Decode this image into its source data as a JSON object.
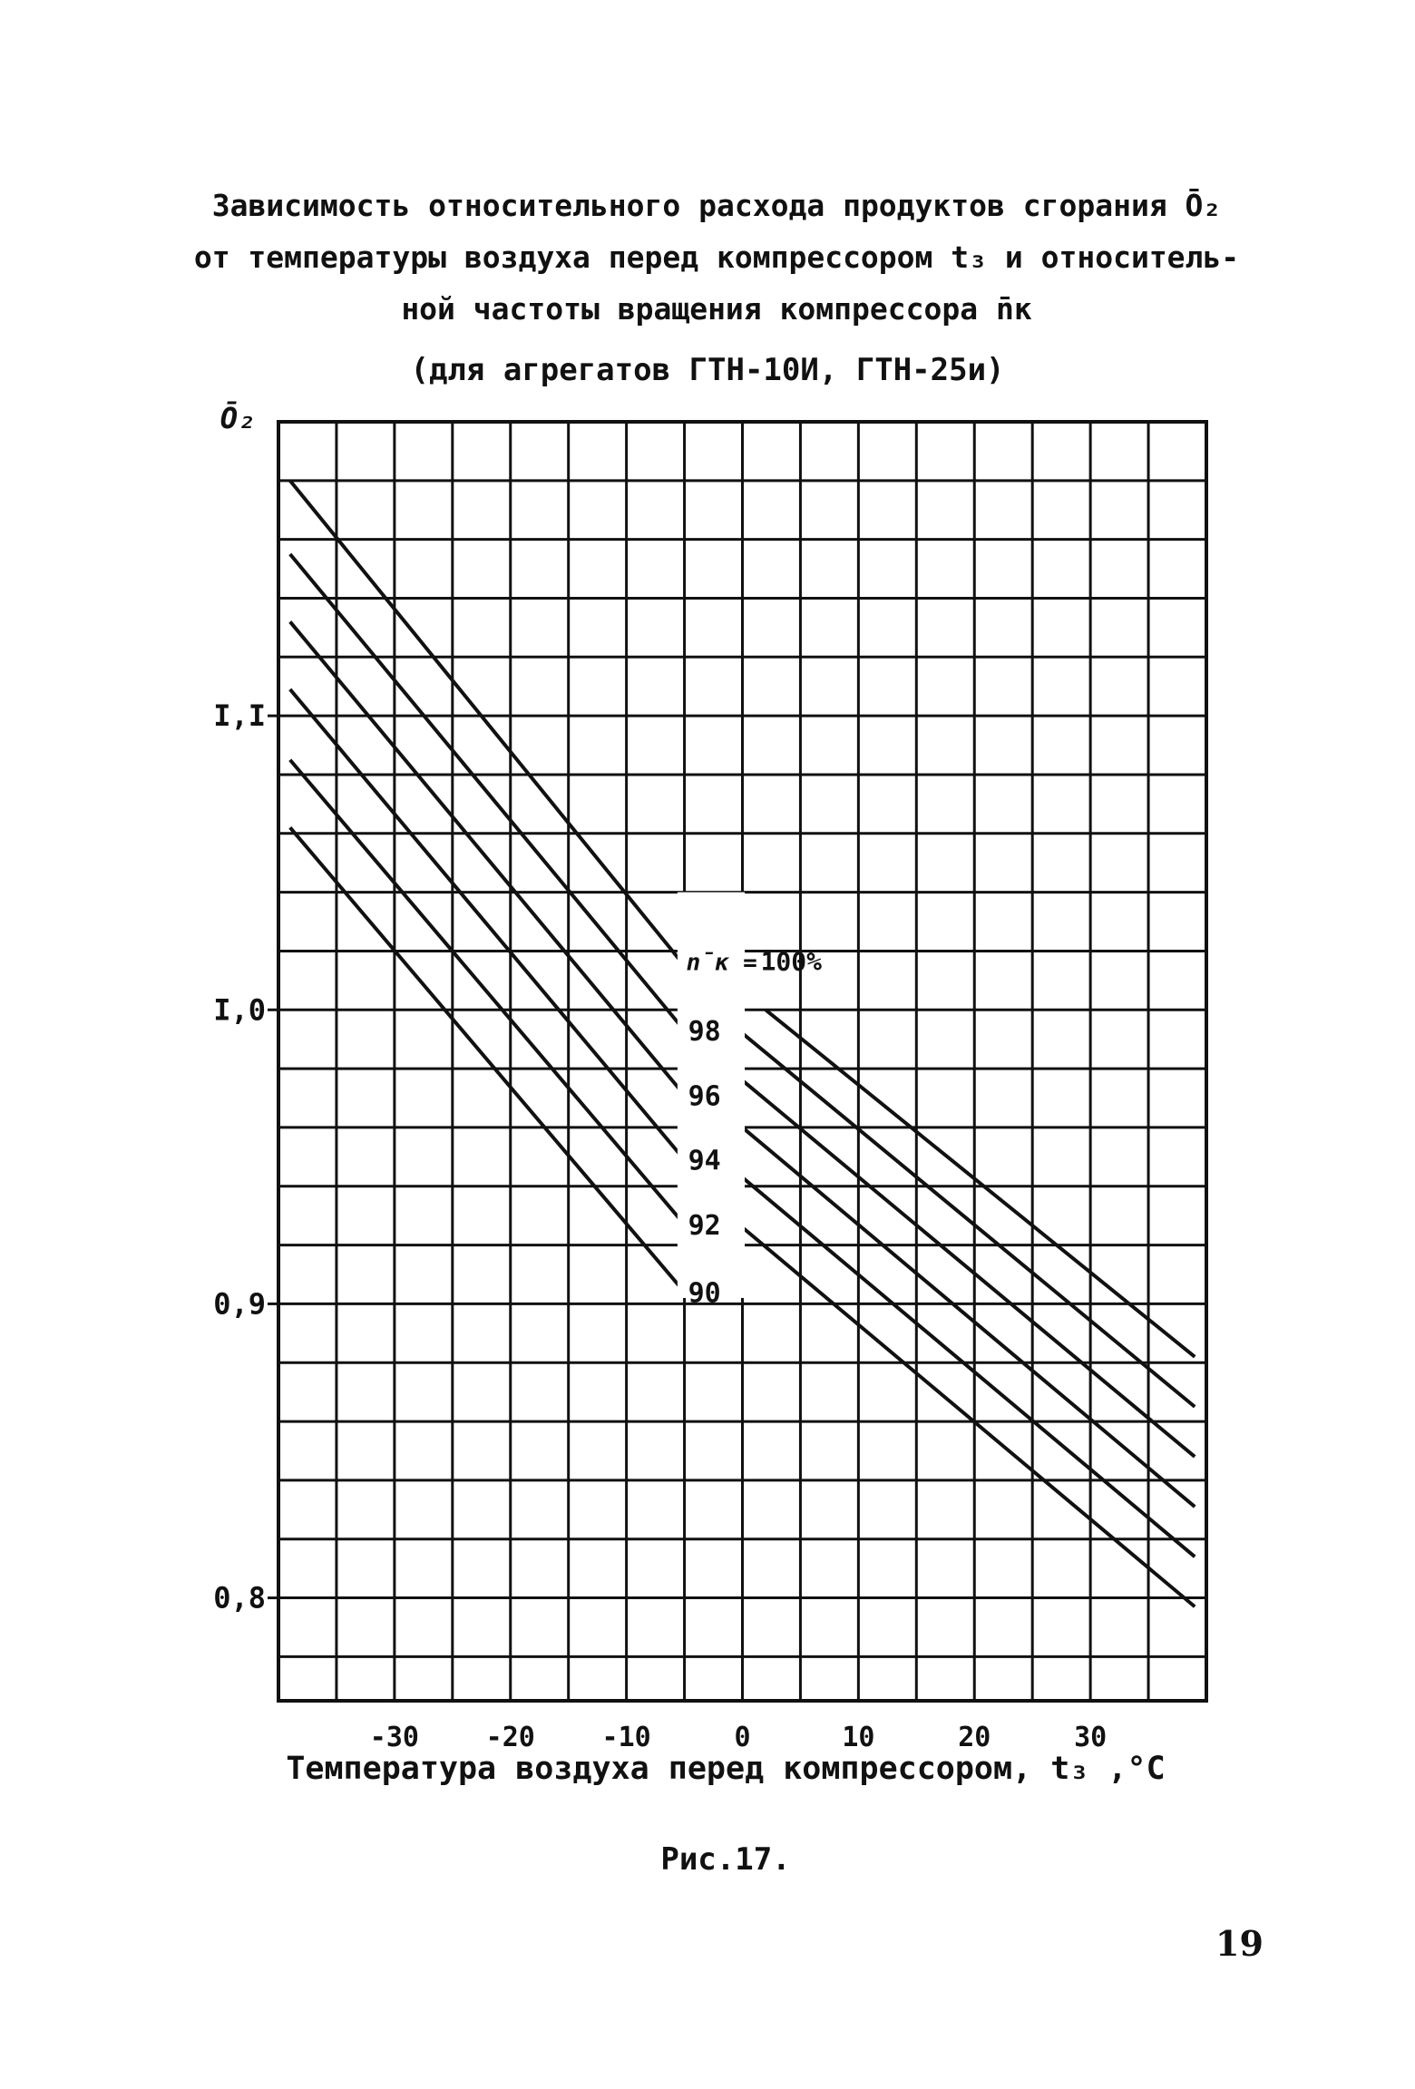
{
  "title_lines": [
    "Зависимость относительного расхода продуктов сгорания Ō₂",
    "от температуры воздуха перед компрессором t₃ и относитель-",
    "ной частоты вращения компрессора n̄к"
  ],
  "subtitle": "(для агрегатов ГТН-10И, ГТН-25и)",
  "caption": "Рис.17.",
  "page_number": "19",
  "chart_data": {
    "type": "line",
    "title": "Зависимость относительного расхода продуктов сгорания Ō₂ от температуры воздуха перед компрессором t₃ и относительной частоты вращения компрессора n̄к",
    "xlabel": "Температура воздуха перед компрессором, t₃ ,°C",
    "ylabel": "Ō₂",
    "xlim": [
      -40,
      40
    ],
    "ylim": [
      0.765,
      1.2
    ],
    "grid": true,
    "x_ticks": [
      -30,
      -20,
      -10,
      0,
      10,
      20,
      30
    ],
    "x_tick_labels": [
      "-30",
      "-20",
      "-10",
      "0",
      "10",
      "20",
      "30"
    ],
    "y_ticks": [
      0.8,
      0.9,
      1.0,
      1.1
    ],
    "y_tick_labels": [
      "0,8",
      "0,9",
      "I,0",
      "I,I"
    ],
    "legend_prefix": "n̄к =",
    "series": [
      {
        "name": "100%",
        "label": "100%",
        "left": {
          "x": [
            -39,
            -5
          ],
          "y": [
            1.18,
            1.015
          ]
        },
        "right": {
          "x": [
            2,
            39
          ],
          "y": [
            1.0,
            0.882
          ]
        }
      },
      {
        "name": "98",
        "label": "98",
        "left": {
          "x": [
            -39,
            -5
          ],
          "y": [
            1.155,
            0.993
          ]
        },
        "right": {
          "x": [
            0,
            39
          ],
          "y": [
            0.992,
            0.865
          ]
        }
      },
      {
        "name": "96",
        "label": "96",
        "left": {
          "x": [
            -39,
            -5
          ],
          "y": [
            1.132,
            0.971
          ]
        },
        "right": {
          "x": [
            0,
            39
          ],
          "y": [
            0.976,
            0.848
          ]
        }
      },
      {
        "name": "94",
        "label": "94",
        "left": {
          "x": [
            -39,
            -5
          ],
          "y": [
            1.109,
            0.949
          ]
        },
        "right": {
          "x": [
            0,
            39
          ],
          "y": [
            0.96,
            0.831
          ]
        }
      },
      {
        "name": "92",
        "label": "92",
        "left": {
          "x": [
            -39,
            -5
          ],
          "y": [
            1.085,
            0.927
          ]
        },
        "right": {
          "x": [
            0,
            39
          ],
          "y": [
            0.943,
            0.814
          ]
        }
      },
      {
        "name": "90",
        "label": "90",
        "left": {
          "x": [
            -39,
            -5
          ],
          "y": [
            1.062,
            0.904
          ]
        },
        "right": {
          "x": [
            0,
            39
          ],
          "y": [
            0.926,
            0.797
          ]
        }
      }
    ]
  }
}
